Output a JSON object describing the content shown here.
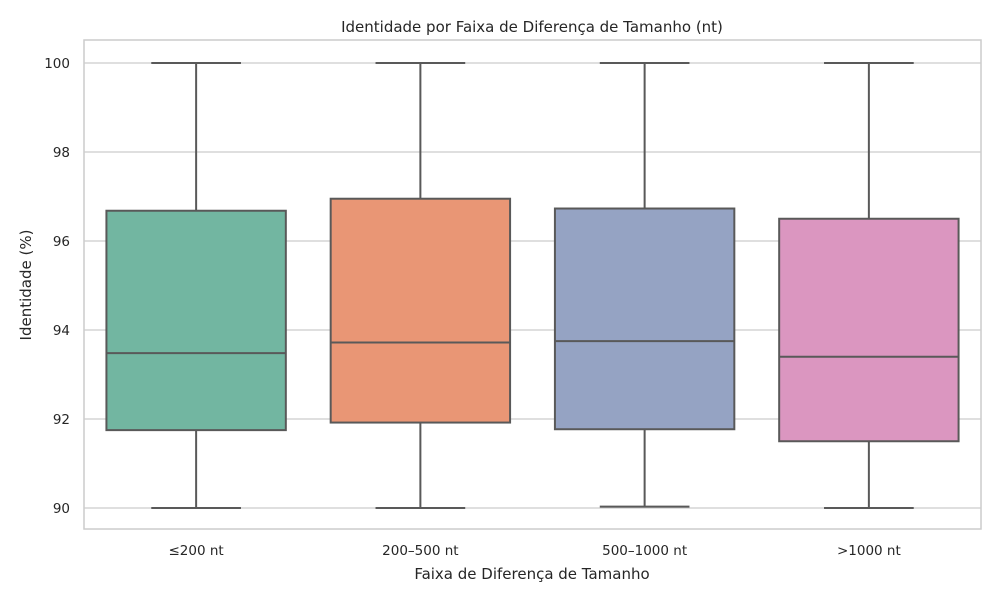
{
  "chart_data": {
    "type": "box",
    "title": "Identidade por Faixa de Diferença de Tamanho (nt)",
    "xlabel": "Faixa de Diferença de Tamanho",
    "ylabel": "Identidade (%)",
    "ylim": [
      89.5,
      100.5
    ],
    "yticks": [
      90,
      92,
      94,
      96,
      98,
      100
    ],
    "grid": true,
    "categories": [
      "≤200 nt",
      "200–500 nt",
      "500–1000 nt",
      ">1000 nt"
    ],
    "boxes": [
      {
        "category": "≤200 nt",
        "whisker_low": 90.0,
        "q1": 91.75,
        "median": 93.48,
        "q3": 96.68,
        "whisker_high": 100.0,
        "color": "#72b6a1"
      },
      {
        "category": "200–500 nt",
        "whisker_low": 90.0,
        "q1": 91.92,
        "median": 93.72,
        "q3": 96.95,
        "whisker_high": 100.0,
        "color": "#e99675"
      },
      {
        "category": "500–1000 nt",
        "whisker_low": 90.03,
        "q1": 91.77,
        "median": 93.75,
        "q3": 96.73,
        "whisker_high": 100.0,
        "color": "#95a3c3"
      },
      {
        "category": ">1000 nt",
        "whisker_low": 90.0,
        "q1": 91.5,
        "median": 93.4,
        "q3": 96.5,
        "whisker_high": 100.0,
        "color": "#db96c0"
      }
    ]
  }
}
